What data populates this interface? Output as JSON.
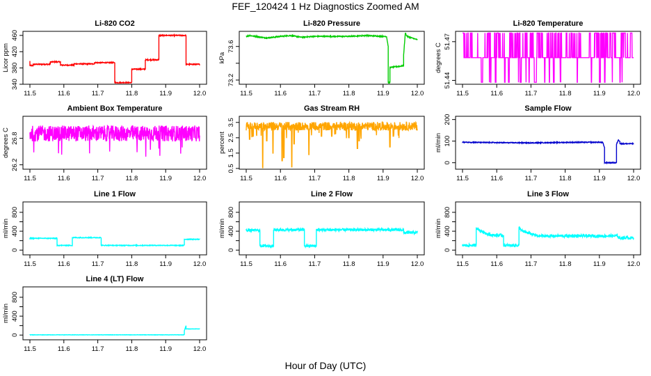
{
  "figure": {
    "title": "FEF_120424  1 Hz Diagnostics Zoomed AM",
    "xlabel": "Hour of Day (UTC)"
  },
  "chart_data": [
    {
      "type": "line",
      "title": "Li-820 CO2",
      "ylabel": "Licor ppm",
      "color": "#ff0000",
      "xlim": [
        11.5,
        12.0
      ],
      "ylim": [
        340,
        470
      ],
      "yticks": [
        340,
        380,
        420,
        460
      ],
      "xticks": [
        11.5,
        11.6,
        11.7,
        11.8,
        11.9,
        12.0
      ],
      "series": [
        {
          "x": [
            11.5,
            11.5,
            11.51,
            11.51,
            11.56,
            11.56,
            11.59,
            11.59,
            11.63,
            11.63,
            11.69,
            11.69,
            11.75,
            11.75,
            11.8,
            11.8,
            11.84,
            11.84,
            11.88,
            11.88,
            11.96,
            11.96,
            12.0
          ],
          "y": [
            397,
            386,
            386,
            389,
            389,
            395,
            395,
            387,
            387,
            390,
            390,
            393,
            393,
            344,
            344,
            377,
            377,
            400,
            400,
            460,
            460,
            389,
            389
          ],
          "noise": 1.2
        }
      ]
    },
    {
      "type": "line",
      "title": "Li-820 Pressure",
      "ylabel": "kPa",
      "color": "#00cc00",
      "xlim": [
        11.5,
        12.0
      ],
      "ylim": [
        73.15,
        73.78
      ],
      "yticks": [
        73.2,
        73.4,
        73.6
      ],
      "ytick_labels": [
        "73.2",
        "",
        "73.6"
      ],
      "xticks": [
        11.5,
        11.6,
        11.7,
        11.8,
        11.9,
        12.0
      ],
      "series": [
        {
          "x": [
            11.5,
            11.51,
            11.56,
            11.6,
            11.63,
            11.66,
            11.7,
            11.75,
            11.8,
            11.85,
            11.9,
            11.91,
            11.915,
            11.915,
            11.92,
            11.92,
            11.96,
            11.96,
            11.965,
            11.97,
            12.0
          ],
          "y": [
            73.72,
            73.73,
            73.7,
            73.72,
            73.73,
            73.71,
            73.72,
            73.72,
            73.72,
            73.73,
            73.72,
            73.72,
            73.6,
            73.17,
            73.17,
            73.35,
            73.37,
            73.5,
            73.76,
            73.72,
            73.68
          ],
          "noise": 0.006
        }
      ]
    },
    {
      "type": "line",
      "title": "Li-820 Temperature",
      "ylabel": "degrees C",
      "color": "#ff00ff",
      "xlim": [
        11.5,
        12.0
      ],
      "ylim": [
        51.437,
        51.478
      ],
      "yticks": [
        51.44,
        51.47
      ],
      "ytick_labels": [
        "51.44",
        "51.47"
      ],
      "xticks": [
        11.5,
        11.6,
        11.7,
        11.8,
        11.9,
        12.0
      ],
      "series": [
        {
          "pattern": "quantized",
          "levels": [
            51.4385,
            51.4576,
            51.4767
          ],
          "base_level": 1
        }
      ]
    },
    {
      "type": "line",
      "title": "Ambient Box Temperature",
      "ylabel": "degrees C",
      "color": "#ff00ff",
      "xlim": [
        11.5,
        12.0
      ],
      "ylim": [
        26.1,
        27.3
      ],
      "yticks": [
        26.2,
        26.8
      ],
      "ytick_labels": [
        "26.2",
        "26.8"
      ],
      "xticks": [
        11.5,
        11.6,
        11.7,
        11.8,
        11.9,
        12.0
      ],
      "series": [
        {
          "pattern": "band",
          "center": 26.91,
          "halfwidth": 0.18,
          "min": 26.18,
          "max": 27.18
        }
      ]
    },
    {
      "type": "line",
      "title": "Gas Stream RH",
      "ylabel": "percent",
      "color": "#ffa500",
      "xlim": [
        11.5,
        12.0
      ],
      "ylim": [
        0.45,
        3.9
      ],
      "yticks": [
        0.5,
        1.5,
        2.5,
        3.5
      ],
      "ytick_labels": [
        "0.5",
        "1.5",
        "2.5",
        "3.5"
      ],
      "xticks": [
        11.5,
        11.6,
        11.7,
        11.8,
        11.9,
        12.0
      ],
      "series": [
        {
          "pattern": "band",
          "center": 3.25,
          "halfwidth": 0.28,
          "min": 0.55,
          "max": 3.6,
          "dips": [
            [
              11.51,
              2.4
            ],
            [
              11.52,
              2.6
            ],
            [
              11.548,
              0.55
            ],
            [
              11.56,
              2.3
            ],
            [
              11.578,
              1.5
            ],
            [
              11.605,
              1.0
            ],
            [
              11.61,
              1.2
            ],
            [
              11.633,
              0.6
            ],
            [
              11.64,
              2.1
            ],
            [
              11.683,
              1.4
            ],
            [
              11.72,
              2.6
            ],
            [
              11.75,
              2.6
            ],
            [
              11.8,
              2.5
            ],
            [
              11.825,
              1.8
            ],
            [
              11.83,
              2.3
            ],
            [
              11.92,
              1.9
            ],
            [
              11.93,
              2.6
            ]
          ]
        }
      ]
    },
    {
      "type": "line",
      "title": "Sample Flow",
      "ylabel": "ml/min",
      "color": "#0000cc",
      "xlim": [
        11.5,
        12.0
      ],
      "ylim": [
        -30,
        215
      ],
      "yticks": [
        0,
        100,
        200
      ],
      "xticks": [
        11.5,
        11.6,
        11.7,
        11.8,
        11.9,
        12.0
      ],
      "series": [
        {
          "x": [
            11.5,
            11.6,
            11.7,
            11.8,
            11.9,
            11.91,
            11.915,
            11.915,
            11.95,
            11.95,
            11.955,
            11.96,
            11.96,
            12.0
          ],
          "y": [
            95,
            93,
            92,
            94,
            95,
            93,
            70,
            0,
            0,
            85,
            105,
            100,
            88,
            88
          ],
          "noise": 2
        }
      ]
    },
    {
      "type": "line",
      "title": "Line 1 Flow",
      "ylabel": "ml/min",
      "color": "#00ffff",
      "xlim": [
        11.5,
        12.0
      ],
      "ylim": [
        -100,
        1020
      ],
      "yticks": [
        0,
        200,
        400,
        600,
        800
      ],
      "ytick_labels": [
        "0",
        "",
        "400",
        "",
        "800"
      ],
      "xticks": [
        11.5,
        11.6,
        11.7,
        11.8,
        11.9,
        12.0
      ],
      "series": [
        {
          "x": [
            11.5,
            11.58,
            11.58,
            11.625,
            11.625,
            11.71,
            11.71,
            11.955,
            11.955,
            12.0
          ],
          "y": [
            250,
            250,
            100,
            100,
            265,
            265,
            100,
            100,
            230,
            230
          ],
          "noise": 8
        }
      ]
    },
    {
      "type": "line",
      "title": "Line 2 Flow",
      "ylabel": "ml/min",
      "color": "#00ffff",
      "xlim": [
        11.5,
        12.0
      ],
      "ylim": [
        -100,
        1020
      ],
      "yticks": [
        0,
        200,
        400,
        600,
        800
      ],
      "ytick_labels": [
        "0",
        "",
        "400",
        "",
        "800"
      ],
      "xticks": [
        11.5,
        11.6,
        11.7,
        11.8,
        11.9,
        12.0
      ],
      "series": [
        {
          "x": [
            11.5,
            11.54,
            11.54,
            11.58,
            11.58,
            11.67,
            11.67,
            11.705,
            11.705,
            11.96,
            11.96,
            12.0
          ],
          "y": [
            420,
            420,
            90,
            90,
            430,
            430,
            90,
            90,
            430,
            430,
            370,
            370
          ],
          "noise": 28
        }
      ]
    },
    {
      "type": "line",
      "title": "Line 3 Flow",
      "ylabel": "ml/min",
      "color": "#00ffff",
      "xlim": [
        11.5,
        12.0
      ],
      "ylim": [
        -100,
        1020
      ],
      "yticks": [
        0,
        200,
        400,
        600,
        800
      ],
      "ytick_labels": [
        "0",
        "",
        "400",
        "",
        "800"
      ],
      "xticks": [
        11.5,
        11.6,
        11.7,
        11.8,
        11.9,
        12.0
      ],
      "series": [
        {
          "x": [
            11.5,
            11.54,
            11.54,
            11.55,
            11.58,
            11.62,
            11.62,
            11.665,
            11.665,
            11.675,
            11.72,
            11.9,
            11.955,
            11.955,
            12.0
          ],
          "y": [
            100,
            100,
            480,
            420,
            320,
            310,
            100,
            100,
            480,
            400,
            300,
            300,
            300,
            260,
            260
          ],
          "noise": 30
        }
      ]
    },
    {
      "type": "line",
      "title": "Line 4 (LT) Flow",
      "ylabel": "ml/min",
      "color": "#00ffff",
      "xlim": [
        11.5,
        12.0
      ],
      "ylim": [
        -100,
        1020
      ],
      "yticks": [
        0,
        200,
        400,
        600,
        800
      ],
      "ytick_labels": [
        "0",
        "",
        "400",
        "",
        "800"
      ],
      "xticks": [
        11.5,
        11.6,
        11.7,
        11.8,
        11.9,
        12.0
      ],
      "series": [
        {
          "x": [
            11.5,
            11.955,
            11.955,
            11.96,
            11.96,
            12.0
          ],
          "y": [
            5,
            5,
            90,
            200,
            130,
            130
          ],
          "noise": 3
        }
      ]
    }
  ]
}
